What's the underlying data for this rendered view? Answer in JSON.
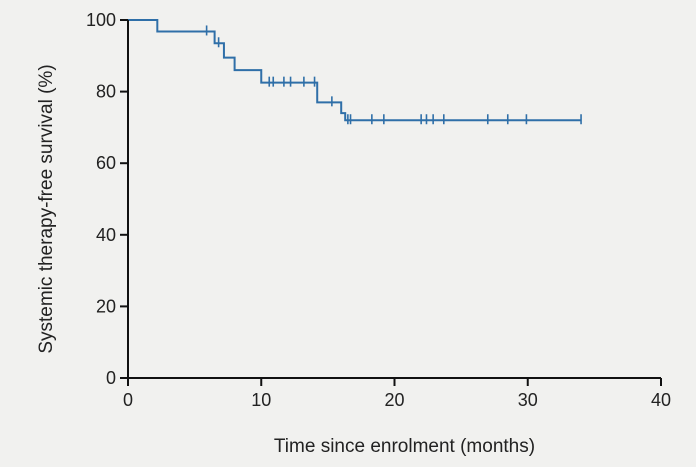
{
  "chart_data": {
    "type": "line",
    "subtype": "kaplan-meier step curve with censor marks",
    "xlabel": "Time since enrolment (months)",
    "ylabel": "Systemic therapy-free survival (%)",
    "xlim": [
      0,
      40
    ],
    "ylim": [
      0,
      100
    ],
    "xticks": [
      0,
      10,
      20,
      30,
      40
    ],
    "yticks": [
      0,
      20,
      40,
      60,
      80,
      100
    ],
    "grid": false,
    "colors": {
      "line": "#2f6fa8",
      "axis": "#111111",
      "background": "#f1f1ef"
    },
    "series": [
      {
        "steps": [
          {
            "x": 0,
            "y": 100
          },
          {
            "x": 2.2,
            "y": 96.8
          },
          {
            "x": 6.5,
            "y": 93.5
          },
          {
            "x": 7.2,
            "y": 89.5
          },
          {
            "x": 8.0,
            "y": 86.0
          },
          {
            "x": 10.0,
            "y": 82.5
          },
          {
            "x": 14.2,
            "y": 77.0
          },
          {
            "x": 16.0,
            "y": 74.0
          },
          {
            "x": 16.3,
            "y": 72.0
          },
          {
            "x": 34.0,
            "y": 72.0
          }
        ],
        "censored": [
          {
            "x": 5.9,
            "y": 96.8
          },
          {
            "x": 6.8,
            "y": 93.5
          },
          {
            "x": 10.6,
            "y": 82.5
          },
          {
            "x": 10.9,
            "y": 82.5
          },
          {
            "x": 11.7,
            "y": 82.5
          },
          {
            "x": 12.2,
            "y": 82.5
          },
          {
            "x": 13.2,
            "y": 82.5
          },
          {
            "x": 14.0,
            "y": 82.5
          },
          {
            "x": 15.3,
            "y": 77.0
          },
          {
            "x": 16.5,
            "y": 72.0
          },
          {
            "x": 16.7,
            "y": 72.0
          },
          {
            "x": 18.3,
            "y": 72.0
          },
          {
            "x": 19.2,
            "y": 72.0
          },
          {
            "x": 22.0,
            "y": 72.0
          },
          {
            "x": 22.4,
            "y": 72.0
          },
          {
            "x": 22.9,
            "y": 72.0
          },
          {
            "x": 23.7,
            "y": 72.0
          },
          {
            "x": 27.0,
            "y": 72.0
          },
          {
            "x": 28.5,
            "y": 72.0
          },
          {
            "x": 29.9,
            "y": 72.0
          },
          {
            "x": 34.0,
            "y": 72.0
          }
        ]
      }
    ]
  }
}
